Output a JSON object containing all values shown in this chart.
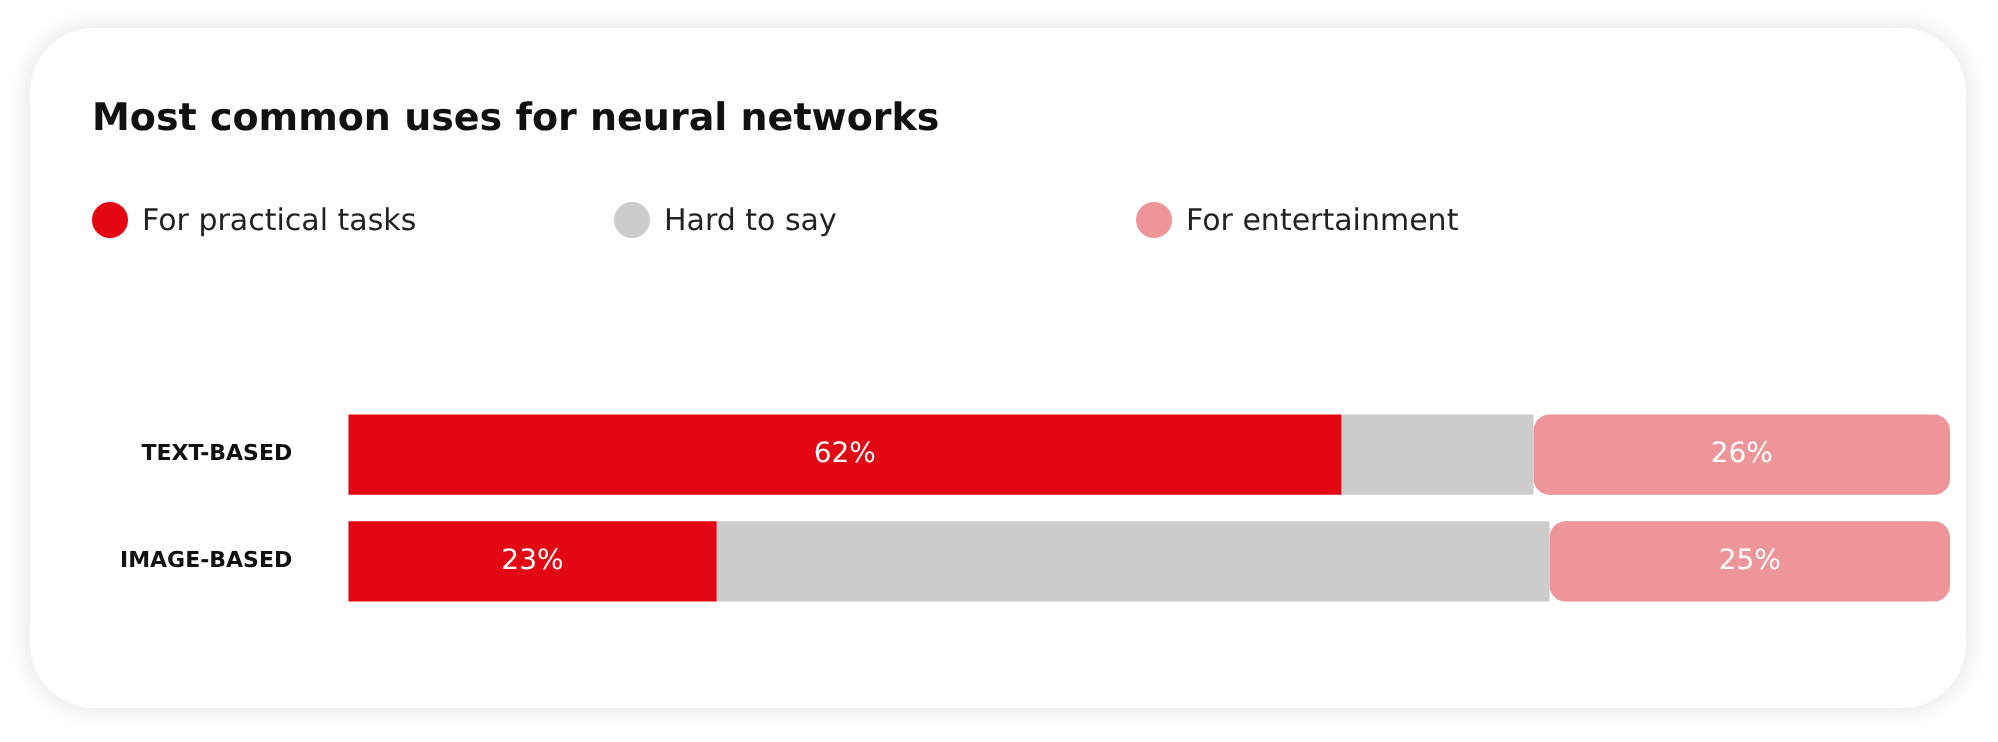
{
  "chart_data": {
    "type": "bar",
    "orientation": "horizontal",
    "stacked": true,
    "title": "Most common uses for neural networks",
    "legend": "top left",
    "categories": [
      "TEXT-BASED",
      "IMAGE-BASED"
    ],
    "series": [
      {
        "name": "For practical tasks",
        "color": "#e30613",
        "values": [
          62,
          23
        ],
        "value_labels": [
          "62%",
          "23%"
        ]
      },
      {
        "name": "Hard to say",
        "color": "#cccccc",
        "values": [
          12,
          52
        ],
        "value_labels": [
          null,
          null
        ]
      },
      {
        "name": "For entertainment",
        "color": "#ee959a",
        "values": [
          26,
          25
        ],
        "value_labels": [
          "26%",
          "25%"
        ]
      }
    ]
  }
}
